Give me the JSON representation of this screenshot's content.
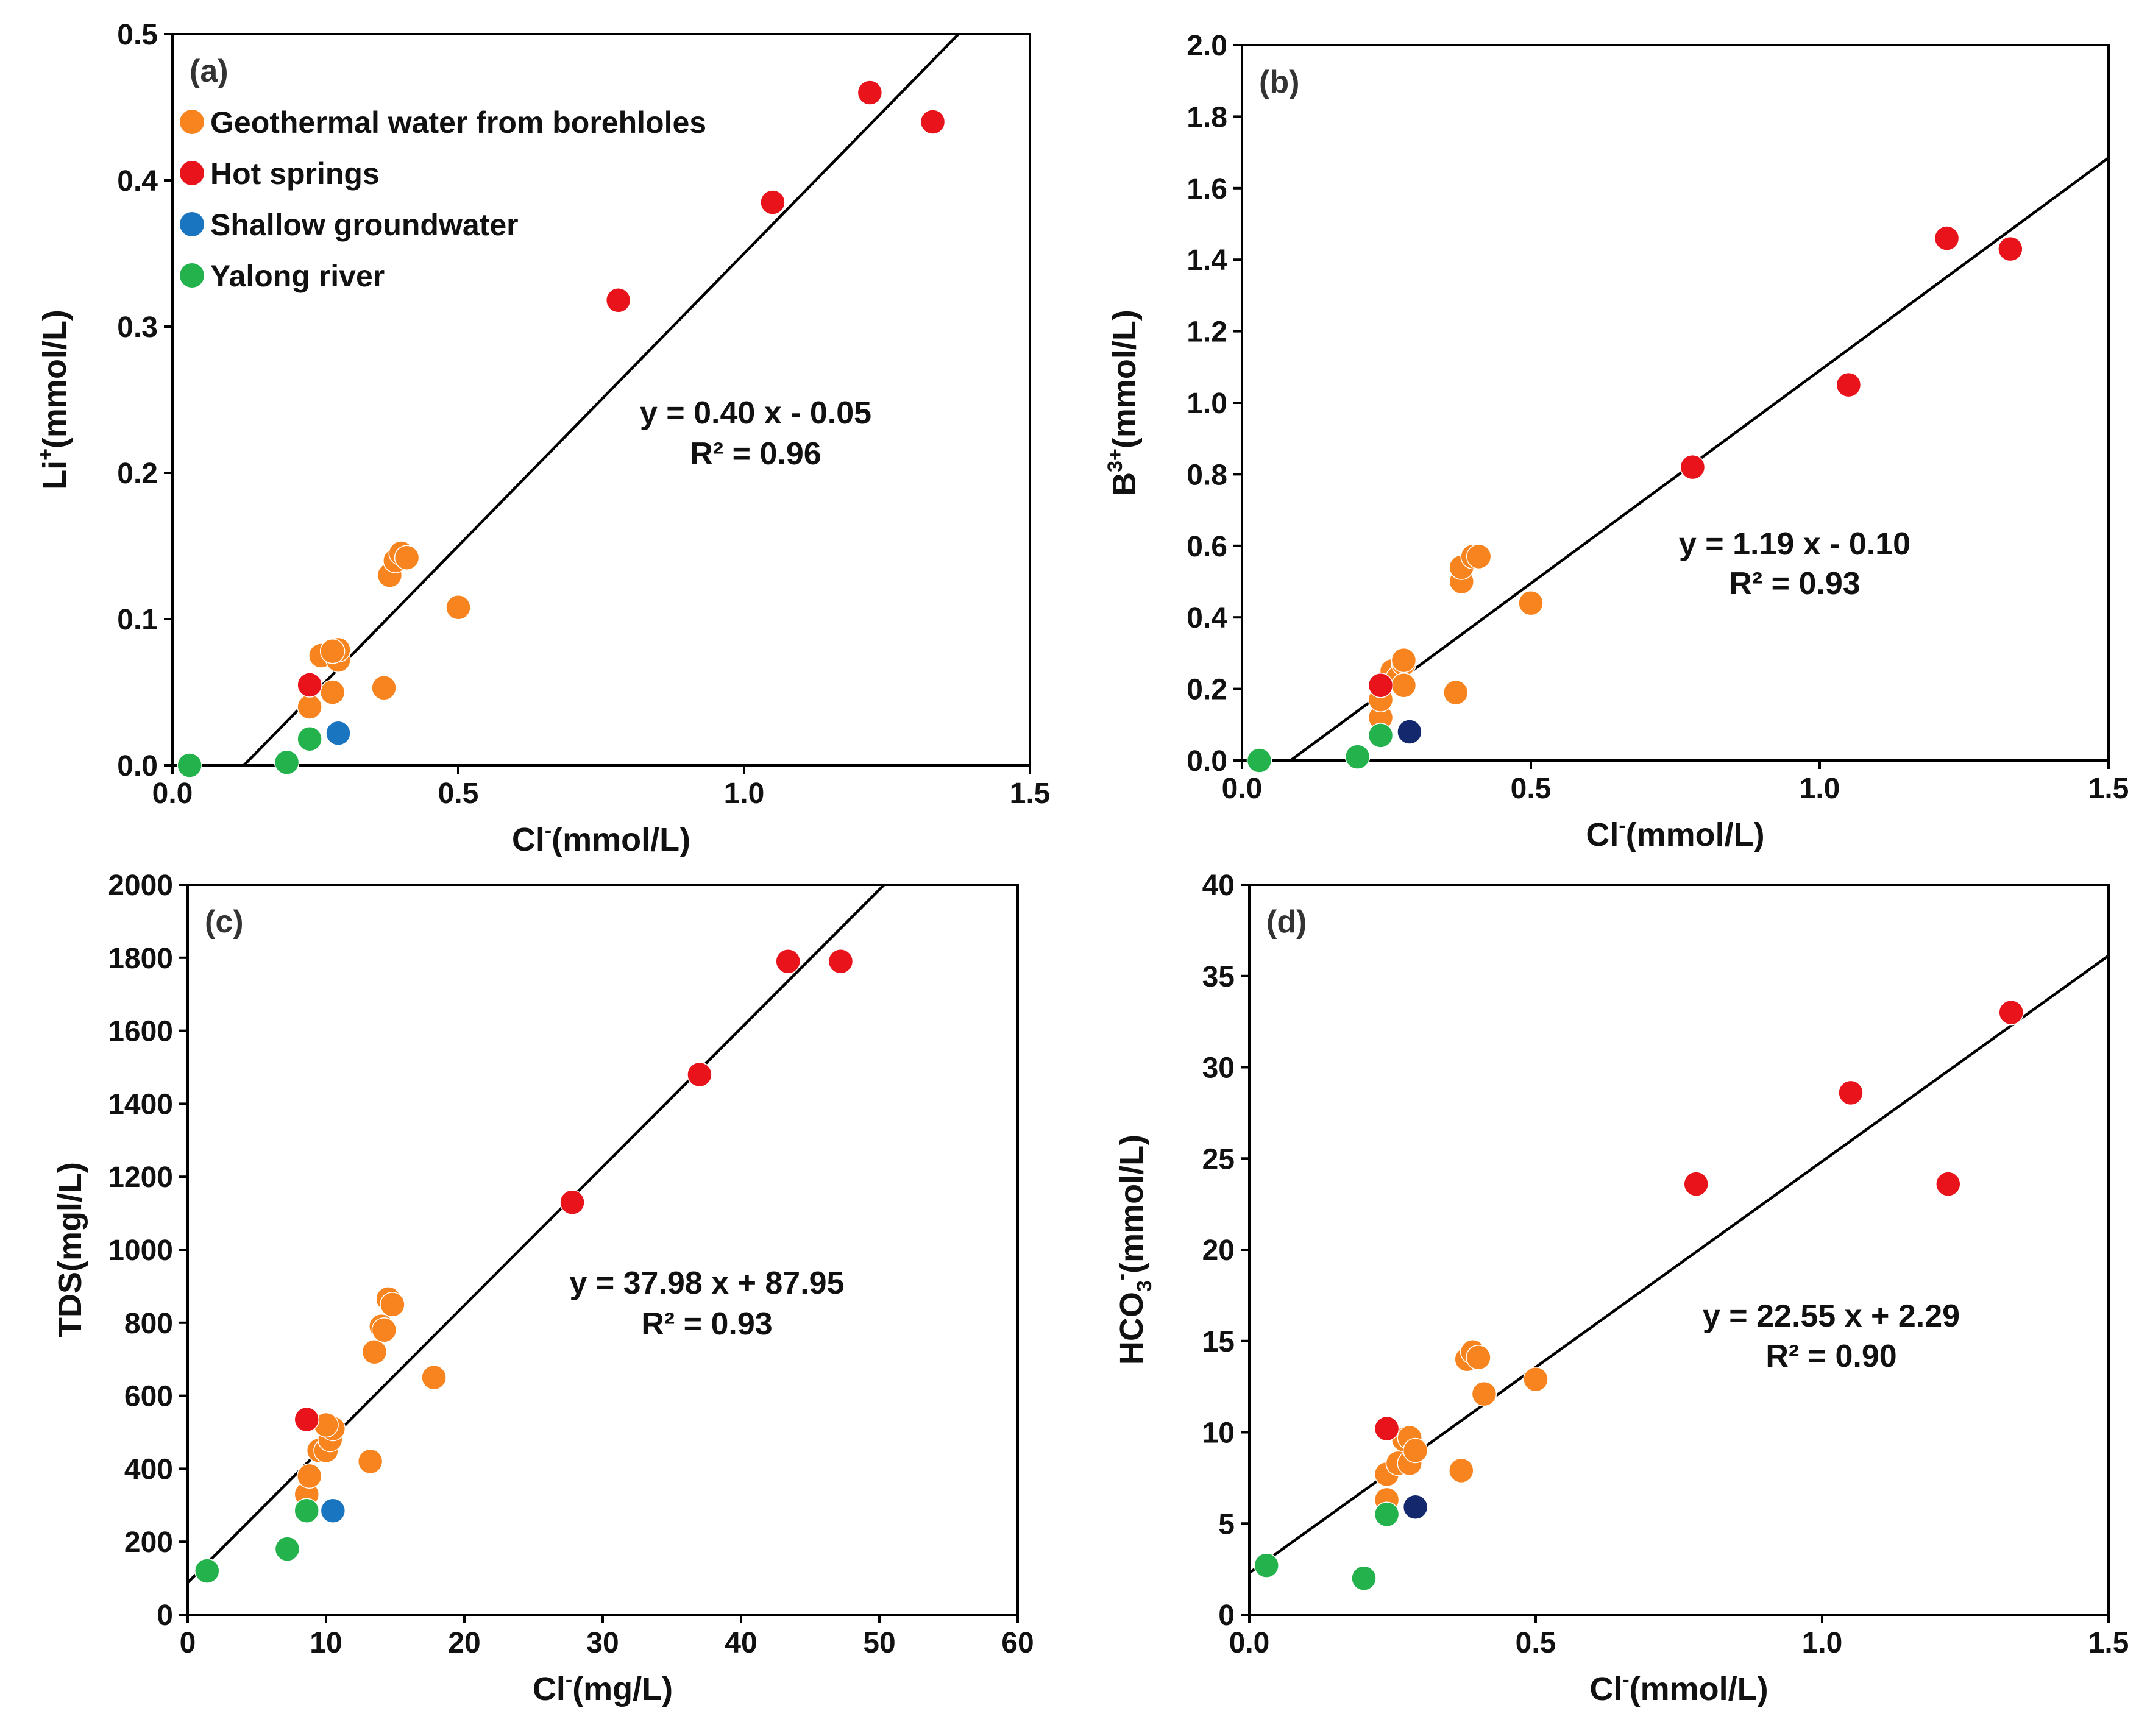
{
  "colors": {
    "geothermal": "#f7841e",
    "hot_springs": "#e8131b",
    "shallow": "#1a75c1",
    "shallow_dark": "#14286d",
    "yalong": "#23b24b"
  },
  "chart_data": [
    {
      "type": "scatter",
      "panel": "(a)",
      "xlabel": {
        "main": "Cl",
        "sup": "-",
        "unit": "(mmol/L)"
      },
      "ylabel": {
        "main": "Li",
        "sup": "+",
        "sub": "",
        "unit": "(mmol/L)"
      },
      "xlim": [
        0,
        1.5
      ],
      "ylim": [
        0,
        0.5
      ],
      "xticks": [
        0,
        0.5,
        1,
        1.5
      ],
      "xtick_labels": [
        "0.0",
        "0.5",
        "1.0",
        "1.5"
      ],
      "yticks": [
        0,
        0.1,
        0.2,
        0.3,
        0.4,
        0.5
      ],
      "ytick_labels": [
        "0.0",
        "0.1",
        "0.2",
        "0.3",
        "0.4",
        "0.5"
      ],
      "legend": {
        "placement": "top-left",
        "entries": [
          {
            "label": "Geothermal water from borehloles",
            "color_key": "geothermal"
          },
          {
            "label": "Hot springs",
            "color_key": "hot_springs"
          },
          {
            "label": "Shallow groundwater",
            "color_key": "shallow"
          },
          {
            "label": "Yalong river",
            "color_key": "yalong"
          }
        ]
      },
      "fit": {
        "slope": 0.4,
        "intercept": -0.05,
        "equation": "y = 0.40 x - 0.05",
        "r2": "R² = 0.96"
      },
      "series": [
        {
          "name": "Geothermal water from borehloles",
          "color_key": "geothermal",
          "x": [
            0.24,
            0.26,
            0.28,
            0.29,
            0.29,
            0.28,
            0.38,
            0.39,
            0.4,
            0.41,
            0.37,
            0.5
          ],
          "y": [
            0.04,
            0.075,
            0.05,
            0.072,
            0.079,
            0.078,
            0.13,
            0.14,
            0.145,
            0.142,
            0.053,
            0.108
          ]
        },
        {
          "name": "Hot springs",
          "color_key": "hot_springs",
          "x": [
            0.24,
            0.78,
            1.05,
            1.22,
            1.33
          ],
          "y": [
            0.055,
            0.318,
            0.385,
            0.46,
            0.44
          ]
        },
        {
          "name": "Shallow groundwater",
          "color_key": "shallow",
          "x": [
            0.29
          ],
          "y": [
            0.022
          ]
        },
        {
          "name": "Yalong river",
          "color_key": "yalong",
          "x": [
            0.03,
            0.2,
            0.24
          ],
          "y": [
            0.0,
            0.002,
            0.018
          ]
        }
      ]
    },
    {
      "type": "scatter",
      "panel": "(b)",
      "xlabel": {
        "main": "Cl",
        "sup": "-",
        "unit": "(mmol/L)"
      },
      "ylabel": {
        "main": "B",
        "sup": "3+",
        "sub": "",
        "unit": "(mmol/L)"
      },
      "xlim": [
        0,
        1.5
      ],
      "ylim": [
        0,
        2.0
      ],
      "xticks": [
        0,
        0.5,
        1,
        1.5
      ],
      "xtick_labels": [
        "0.0",
        "0.5",
        "1.0",
        "1.5"
      ],
      "yticks": [
        0,
        0.2,
        0.4,
        0.6,
        0.8,
        1.0,
        1.2,
        1.4,
        1.6,
        1.8,
        2.0
      ],
      "ytick_labels": [
        "0.0",
        "0.2",
        "0.4",
        "0.6",
        "0.8",
        "1.0",
        "1.2",
        "1.4",
        "1.6",
        "1.8",
        "2.0"
      ],
      "fit": {
        "slope": 1.19,
        "intercept": -0.1,
        "equation": "y = 1.19 x - 0.10",
        "r2": "R² = 0.93"
      },
      "series": [
        {
          "name": "Geothermal water from borehloles",
          "color_key": "geothermal",
          "x": [
            0.24,
            0.24,
            0.26,
            0.27,
            0.28,
            0.28,
            0.28,
            0.38,
            0.38,
            0.4,
            0.41,
            0.37,
            0.5
          ],
          "y": [
            0.12,
            0.17,
            0.25,
            0.23,
            0.27,
            0.28,
            0.21,
            0.5,
            0.54,
            0.57,
            0.57,
            0.19,
            0.44
          ]
        },
        {
          "name": "Hot springs",
          "color_key": "hot_springs",
          "x": [
            0.24,
            0.78,
            1.05,
            1.22,
            1.33
          ],
          "y": [
            0.21,
            0.82,
            1.05,
            1.46,
            1.43
          ]
        },
        {
          "name": "Shallow groundwater",
          "color_key": "shallow_dark",
          "x": [
            0.29
          ],
          "y": [
            0.08
          ]
        },
        {
          "name": "Yalong river",
          "color_key": "yalong",
          "x": [
            0.03,
            0.2,
            0.24
          ],
          "y": [
            0.0,
            0.01,
            0.07
          ]
        }
      ]
    },
    {
      "type": "scatter",
      "panel": "(c)",
      "xlabel": {
        "main": "Cl",
        "sup": "-",
        "unit": "(mg/L)"
      },
      "ylabel": {
        "main": "TDS",
        "sup": "",
        "sub": "",
        "unit": "(mgl/L)"
      },
      "xlim": [
        0,
        60
      ],
      "ylim": [
        0,
        2000
      ],
      "xticks": [
        0,
        10,
        20,
        30,
        40,
        50,
        60
      ],
      "xtick_labels": [
        "0",
        "10",
        "20",
        "30",
        "40",
        "50",
        "60"
      ],
      "yticks": [
        0,
        200,
        400,
        600,
        800,
        1000,
        1200,
        1400,
        1600,
        1800,
        2000
      ],
      "ytick_labels": [
        "0",
        "200",
        "400",
        "600",
        "800",
        "1000",
        "1200",
        "1400",
        "1600",
        "1800",
        "2000"
      ],
      "fit": {
        "slope": 37.98,
        "intercept": 87.95,
        "equation": "y = 37.98 x + 87.95",
        "r2": "R² = 0.93"
      },
      "series": [
        {
          "name": "Geothermal water from borehloles",
          "color_key": "geothermal",
          "x": [
            8.6,
            8.8,
            9.5,
            10.0,
            10.3,
            10.5,
            10.0,
            13.5,
            14.0,
            14.2,
            14.5,
            14.8,
            17.8,
            13.2
          ],
          "y": [
            330,
            380,
            450,
            450,
            480,
            510,
            520,
            720,
            790,
            780,
            865,
            850,
            650,
            420
          ]
        },
        {
          "name": "Hot springs",
          "color_key": "hot_springs",
          "x": [
            8.6,
            27.8,
            37.0,
            43.4,
            47.2
          ],
          "y": [
            535,
            1130,
            1480,
            1790,
            1790
          ]
        },
        {
          "name": "Shallow groundwater",
          "color_key": "shallow",
          "x": [
            10.5
          ],
          "y": [
            285
          ]
        },
        {
          "name": "Yalong river",
          "color_key": "yalong",
          "x": [
            1.4,
            7.2,
            8.6
          ],
          "y": [
            120,
            180,
            285
          ]
        }
      ]
    },
    {
      "type": "scatter",
      "panel": "(d)",
      "xlabel": {
        "main": "Cl",
        "sup": "-",
        "unit": "(mmol/L)"
      },
      "ylabel": {
        "main": "HCO",
        "sub": "3",
        "sup": "-",
        "unit": "(mmol/L)"
      },
      "xlim": [
        0,
        1.5
      ],
      "ylim": [
        0,
        40
      ],
      "xticks": [
        0,
        0.5,
        1,
        1.5
      ],
      "xtick_labels": [
        "0.0",
        "0.5",
        "1.0",
        "1.5"
      ],
      "yticks": [
        0,
        5,
        10,
        15,
        20,
        25,
        30,
        35,
        40
      ],
      "ytick_labels": [
        "0",
        "5",
        "10",
        "15",
        "20",
        "25",
        "30",
        "35",
        "40"
      ],
      "fit": {
        "slope": 22.55,
        "intercept": 2.29,
        "equation": "y = 22.55 x + 2.29",
        "r2": "R² = 0.90"
      },
      "series": [
        {
          "name": "Geothermal water from borehloles",
          "color_key": "geothermal",
          "x": [
            0.24,
            0.24,
            0.26,
            0.27,
            0.28,
            0.28,
            0.29,
            0.38,
            0.39,
            0.4,
            0.41,
            0.37,
            0.5
          ],
          "y": [
            6.3,
            7.7,
            8.3,
            9.6,
            9.7,
            8.3,
            9.0,
            14.0,
            14.4,
            14.1,
            12.1,
            7.9,
            12.9
          ]
        },
        {
          "name": "Hot springs",
          "color_key": "hot_springs",
          "x": [
            0.24,
            0.78,
            1.05,
            1.22,
            1.33
          ],
          "y": [
            10.2,
            23.6,
            28.6,
            23.6,
            33.0
          ]
        },
        {
          "name": "Shallow groundwater",
          "color_key": "shallow_dark",
          "x": [
            0.29
          ],
          "y": [
            5.9
          ]
        },
        {
          "name": "Yalong river",
          "color_key": "yalong",
          "x": [
            0.03,
            0.2,
            0.24
          ],
          "y": [
            2.7,
            2.0,
            5.5
          ]
        }
      ]
    }
  ]
}
